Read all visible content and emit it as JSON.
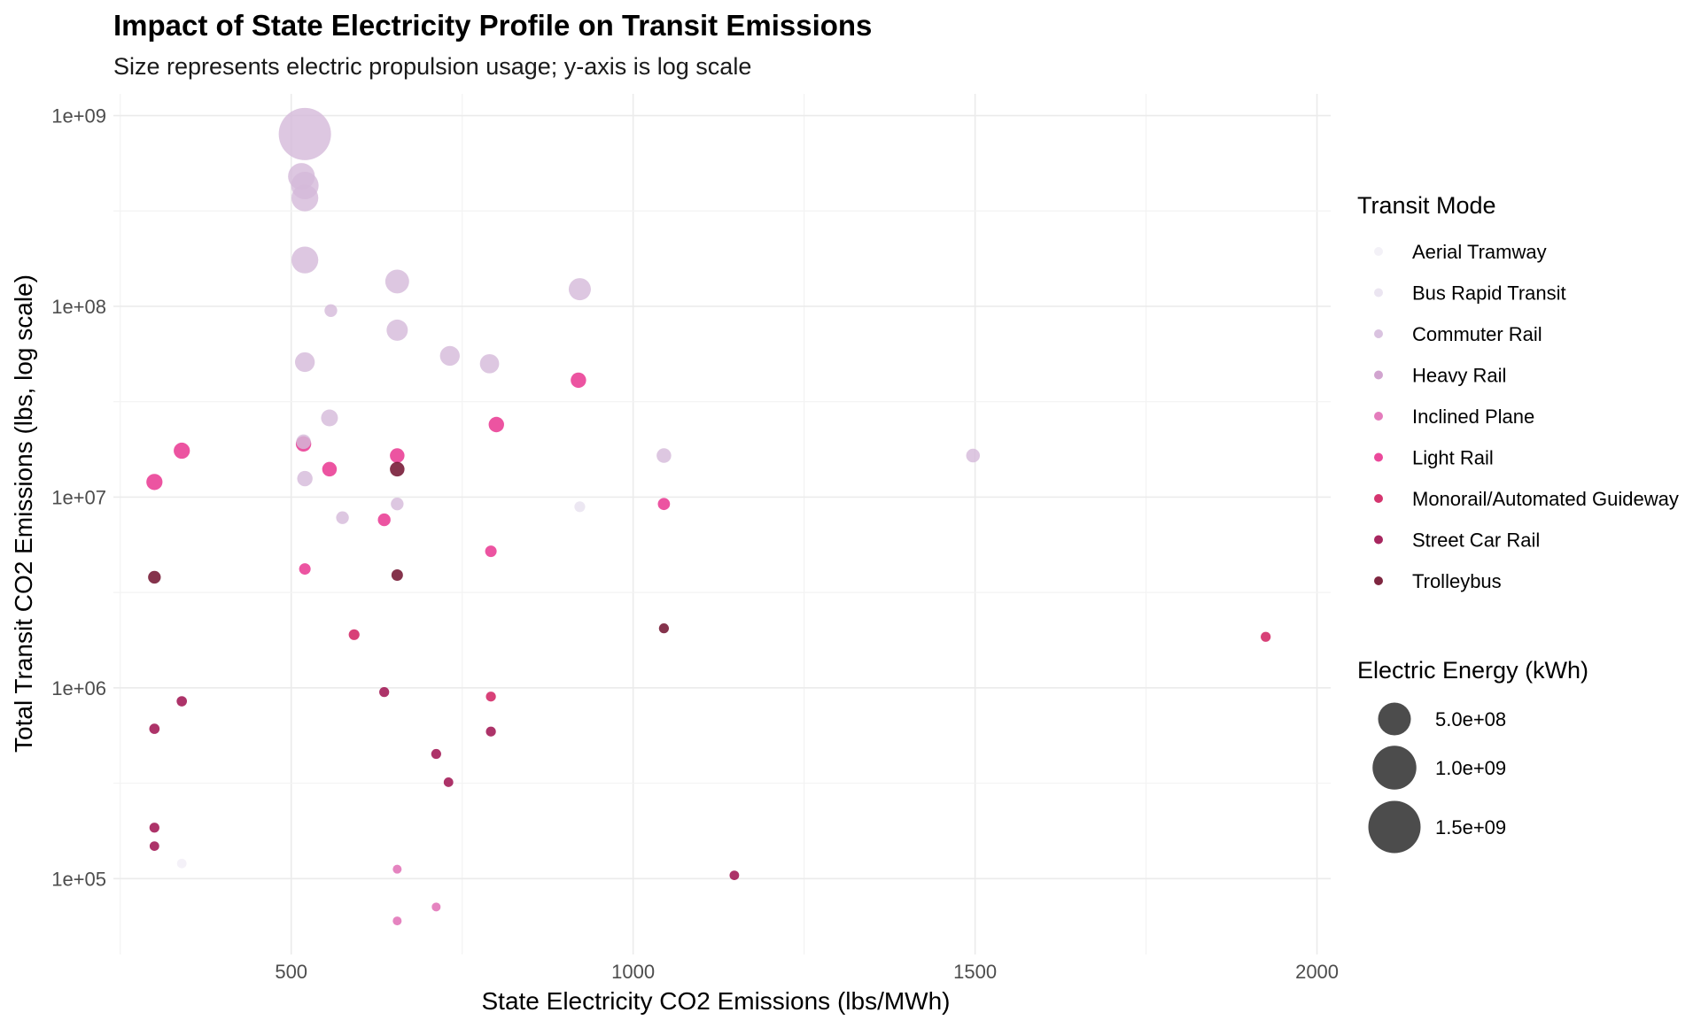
{
  "chart_data": {
    "type": "scatter",
    "title": "Impact of State Electricity Profile on Transit Emissions",
    "subtitle": "Size represents electric propulsion usage; y-axis is log scale",
    "xlabel": "State Electricity CO2 Emissions (lbs/MWh)",
    "ylabel": "Total Transit CO2 Emissions (lbs, log scale)",
    "x_scale": "linear",
    "y_scale": "log10",
    "xlim": [
      240,
      2020
    ],
    "ylim": [
      40000,
      1300000000
    ],
    "x_ticks": [
      500,
      1000,
      1500,
      2000
    ],
    "x_tick_labels": [
      "500",
      "1000",
      "1500",
      "2000"
    ],
    "y_ticks": [
      100000,
      1000000,
      10000000,
      100000000,
      1000000000
    ],
    "y_tick_labels": [
      "1e+05",
      "1e+06",
      "1e+07",
      "1e+08",
      "1e+09"
    ],
    "grid": true,
    "color_legend": {
      "title": "Transit Mode",
      "position": "right",
      "items": [
        {
          "name": "Aerial Tramway",
          "color": "#f1eef6"
        },
        {
          "name": "Bus Rapid Transit",
          "color": "#e7e1ef"
        },
        {
          "name": "Commuter Rail",
          "color": "#d4b9da"
        },
        {
          "name": "Heavy Rail",
          "color": "#c994c7"
        },
        {
          "name": "Inclined Plane",
          "color": "#df65b0"
        },
        {
          "name": "Light Rail",
          "color": "#e7298a"
        },
        {
          "name": "Monorail/Automated Guideway",
          "color": "#ce1256"
        },
        {
          "name": "Street Car Rail",
          "color": "#980043"
        },
        {
          "name": "Trolleybus",
          "color": "#67001f"
        }
      ]
    },
    "size_legend": {
      "title": "Electric Energy (kWh)",
      "position": "right",
      "items": [
        {
          "label": "5.0e+08",
          "value": 500000000
        },
        {
          "label": "1.0e+09",
          "value": 1000000000
        },
        {
          "label": "1.5e+09",
          "value": 1500000000
        }
      ]
    },
    "points": [
      {
        "mode": "Commuter Rail",
        "x": 520,
        "y": 800000000,
        "energy": 1500000000
      },
      {
        "mode": "Commuter Rail",
        "x": 515,
        "y": 480000000,
        "energy": 300000000
      },
      {
        "mode": "Commuter Rail",
        "x": 520,
        "y": 430000000,
        "energy": 320000000
      },
      {
        "mode": "Commuter Rail",
        "x": 520,
        "y": 370000000,
        "energy": 300000000
      },
      {
        "mode": "Commuter Rail",
        "x": 520,
        "y": 175000000,
        "energy": 300000000
      },
      {
        "mode": "Commuter Rail",
        "x": 655,
        "y": 135000000,
        "energy": 220000000
      },
      {
        "mode": "Commuter Rail",
        "x": 922,
        "y": 123000000,
        "energy": 180000000
      },
      {
        "mode": "Commuter Rail",
        "x": 558,
        "y": 95000000,
        "energy": 30000000
      },
      {
        "mode": "Commuter Rail",
        "x": 655,
        "y": 75000000,
        "energy": 160000000
      },
      {
        "mode": "Commuter Rail",
        "x": 732,
        "y": 55000000,
        "energy": 130000000
      },
      {
        "mode": "Commuter Rail",
        "x": 520,
        "y": 51000000,
        "energy": 130000000
      },
      {
        "mode": "Commuter Rail",
        "x": 790,
        "y": 50000000,
        "energy": 120000000
      },
      {
        "mode": "Commuter Rail",
        "x": 556,
        "y": 26000000,
        "energy": 80000000
      },
      {
        "mode": "Commuter Rail",
        "x": 518,
        "y": 19500000,
        "energy": 50000000
      },
      {
        "mode": "Commuter Rail",
        "x": 520,
        "y": 12500000,
        "energy": 60000000
      },
      {
        "mode": "Commuter Rail",
        "x": 1045,
        "y": 16500000,
        "energy": 50000000
      },
      {
        "mode": "Commuter Rail",
        "x": 1497,
        "y": 16500000,
        "energy": 40000000
      },
      {
        "mode": "Commuter Rail",
        "x": 575,
        "y": 7800000,
        "energy": 30000000
      },
      {
        "mode": "Commuter Rail",
        "x": 655,
        "y": 9200000,
        "energy": 30000000
      },
      {
        "mode": "Bus Rapid Transit",
        "x": 922,
        "y": 8900000,
        "energy": 15000000
      },
      {
        "mode": "Aerial Tramway",
        "x": 340,
        "y": 120000,
        "energy": 8000000
      },
      {
        "mode": "Light Rail",
        "x": 920,
        "y": 41000000,
        "energy": 60000000
      },
      {
        "mode": "Light Rail",
        "x": 800,
        "y": 24000000,
        "energy": 60000000
      },
      {
        "mode": "Light Rail",
        "x": 340,
        "y": 17500000,
        "energy": 70000000
      },
      {
        "mode": "Light Rail",
        "x": 518,
        "y": 19000000,
        "energy": 60000000
      },
      {
        "mode": "Light Rail",
        "x": 655,
        "y": 16500000,
        "energy": 50000000
      },
      {
        "mode": "Light Rail",
        "x": 556,
        "y": 14000000,
        "energy": 50000000
      },
      {
        "mode": "Light Rail",
        "x": 300,
        "y": 12000000,
        "energy": 70000000
      },
      {
        "mode": "Light Rail",
        "x": 1045,
        "y": 9200000,
        "energy": 25000000
      },
      {
        "mode": "Light Rail",
        "x": 636,
        "y": 7600000,
        "energy": 30000000
      },
      {
        "mode": "Light Rail",
        "x": 520,
        "y": 4200000,
        "energy": 20000000
      },
      {
        "mode": "Light Rail",
        "x": 792,
        "y": 5200000,
        "energy": 20000000
      },
      {
        "mode": "Monorail/Automated Guideway",
        "x": 592,
        "y": 1900000,
        "energy": 15000000
      },
      {
        "mode": "Monorail/Automated Guideway",
        "x": 792,
        "y": 900000,
        "energy": 10000000
      },
      {
        "mode": "Monorail/Automated Guideway",
        "x": 1925,
        "y": 1850000,
        "energy": 10000000
      },
      {
        "mode": "Inclined Plane",
        "x": 655,
        "y": 112000,
        "energy": 5000000
      },
      {
        "mode": "Inclined Plane",
        "x": 655,
        "y": 60000,
        "energy": 5000000
      },
      {
        "mode": "Inclined Plane",
        "x": 712,
        "y": 71000,
        "energy": 5000000
      },
      {
        "mode": "Street Car Rail",
        "x": 300,
        "y": 610000,
        "energy": 12000000
      },
      {
        "mode": "Street Car Rail",
        "x": 340,
        "y": 850000,
        "energy": 12000000
      },
      {
        "mode": "Street Car Rail",
        "x": 300,
        "y": 185000,
        "energy": 10000000
      },
      {
        "mode": "Street Car Rail",
        "x": 300,
        "y": 148000,
        "energy": 8000000
      },
      {
        "mode": "Street Car Rail",
        "x": 636,
        "y": 950000,
        "energy": 10000000
      },
      {
        "mode": "Street Car Rail",
        "x": 712,
        "y": 450000,
        "energy": 10000000
      },
      {
        "mode": "Street Car Rail",
        "x": 792,
        "y": 590000,
        "energy": 10000000
      },
      {
        "mode": "Street Car Rail",
        "x": 730,
        "y": 320000,
        "energy": 8000000
      },
      {
        "mode": "Street Car Rail",
        "x": 1148,
        "y": 104000,
        "energy": 8000000
      },
      {
        "mode": "Trolleybus",
        "x": 655,
        "y": 14000000,
        "energy": 50000000
      },
      {
        "mode": "Trolleybus",
        "x": 300,
        "y": 3800000,
        "energy": 30000000
      },
      {
        "mode": "Trolleybus",
        "x": 655,
        "y": 3900000,
        "energy": 20000000
      },
      {
        "mode": "Trolleybus",
        "x": 1045,
        "y": 2050000,
        "energy": 10000000
      }
    ]
  }
}
